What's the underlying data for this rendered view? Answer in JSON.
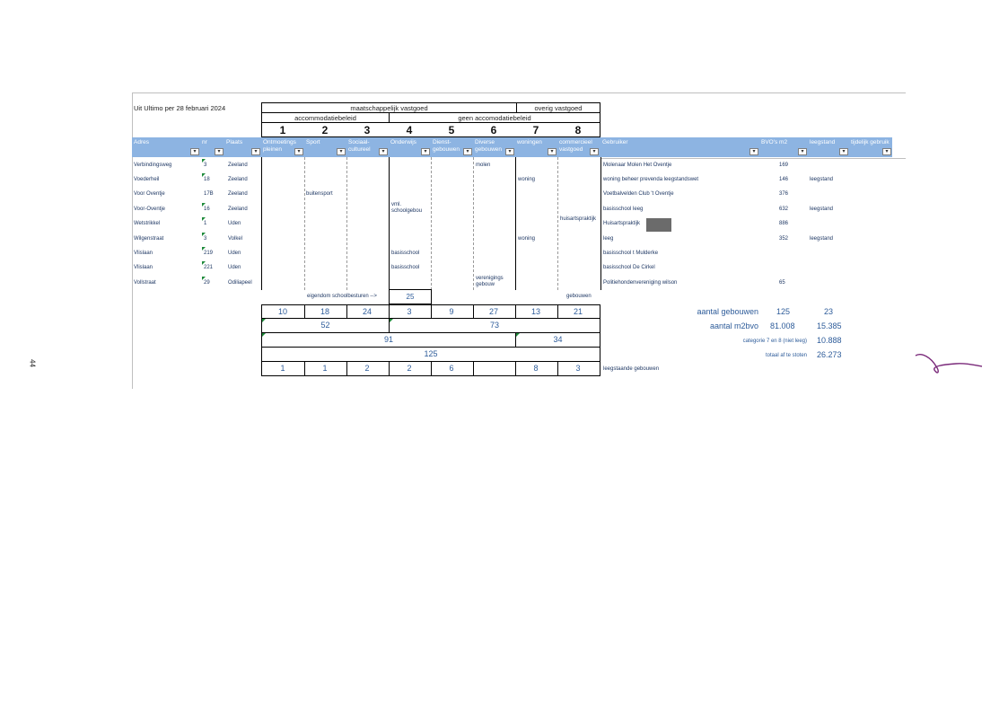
{
  "page_number": "44",
  "title": "Uit Ultimo per 28 februari 2024",
  "groups": {
    "maatschappelijk": "maatschappelijk vastgoed",
    "overig": "overig vastgoed",
    "accommodatie": "accommodatiebeleid",
    "geen": "geen accomodatiebeleid"
  },
  "category_numbers": [
    "1",
    "2",
    "3",
    "4",
    "5",
    "6",
    "7",
    "8"
  ],
  "headers": {
    "adres": "Adres",
    "nr": "nr",
    "plaats": "Plaats",
    "c1": "Ontmoetings pleinen",
    "c2": "Sport",
    "c3": "Sociaal-cultureel",
    "c4": "Onderwijs",
    "c5": "Dienst-gebouwen",
    "c6": "Diverse gebouwen",
    "c7": "woningen",
    "c8": "commercieel vastgoed",
    "gebruiker": "Gebruiker",
    "bvo": "BVO's m2",
    "leegstand": "leegstand",
    "tijdelijk": "tijdelijk gebruik"
  },
  "rows": [
    {
      "adres": "Verbindingsweg",
      "nr": "3",
      "plaats": "Zeeland",
      "c2": "",
      "c4": "",
      "c6": "molen",
      "c7": "",
      "c8": "",
      "gebruiker": "Molenaar Molen Het Oventje",
      "bvo": "169",
      "leeg": ""
    },
    {
      "adres": "Voederheil",
      "nr": "18",
      "plaats": "Zeeland",
      "c2": "",
      "c4": "",
      "c6": "",
      "c7": "woning",
      "c8": "",
      "gebruiker": "woning beheer prevenda leegstandswet",
      "bvo": "146",
      "leeg": "leegstand"
    },
    {
      "adres": "Voor Oventje",
      "nr": "17B",
      "plaats": "Zeeland",
      "c2": "buitensport",
      "c4": "",
      "c6": "",
      "c7": "",
      "c8": "",
      "gebruiker": "Voetbalvelden Club 't Oventje",
      "bvo": "376",
      "leeg": ""
    },
    {
      "adres": "Voor-Oventje",
      "nr": "16",
      "plaats": "Zeeland",
      "c2": "",
      "c4": "vml. schoolgebou",
      "c6": "",
      "c7": "",
      "c8": "",
      "gebruiker": "basisschool leeg",
      "bvo": "632",
      "leeg": "leegstand"
    },
    {
      "adres": "Wetstrikkel",
      "nr": "1",
      "plaats": "Uden",
      "c2": "",
      "c4": "",
      "c6": "",
      "c7": "",
      "c8": "huisartspraktijk",
      "gebruiker": "Huisartspraktijk",
      "bvo": "886",
      "leeg": ""
    },
    {
      "adres": "Wilgenstraat",
      "nr": "3",
      "plaats": "Volkel",
      "c2": "",
      "c4": "",
      "c6": "",
      "c7": "woning",
      "c8": "",
      "gebruiker": "leeg",
      "bvo": "352",
      "leeg": "leegstand"
    },
    {
      "adres": "Vlislaan",
      "nr": "219",
      "plaats": "Uden",
      "c2": "",
      "c4": "basisschool",
      "c6": "",
      "c7": "",
      "c8": "",
      "gebruiker": "basisschool t Mulderke",
      "bvo": "",
      "leeg": ""
    },
    {
      "adres": "Vlislaan",
      "nr": "221",
      "plaats": "Uden",
      "c2": "",
      "c4": "basisschool",
      "c6": "",
      "c7": "",
      "c8": "",
      "gebruiker": "basisschool De Cirkel",
      "bvo": "",
      "leeg": ""
    },
    {
      "adres": "Vollstraat",
      "nr": "29",
      "plaats": "Odiliapeel",
      "c2": "",
      "c4": "",
      "c6": "verenigings gebouw",
      "c7": "",
      "c8": "",
      "gebruiker": "Politiehondenvereniging wilson",
      "bvo": "65",
      "leeg": ""
    }
  ],
  "eigendom_label": "eigendom schoolbesturen -->",
  "eigendom_value": "25",
  "gebouwen_label": "gebouwen",
  "counts": [
    "10",
    "18",
    "24",
    "3",
    "9",
    "27",
    "13",
    "21"
  ],
  "subtotal_52": "52",
  "subtotal_73": "73",
  "subtotal_91": "91",
  "subtotal_34": "34",
  "total_125": "125",
  "leeg_counts": [
    "1",
    "1",
    "2",
    "2",
    "6",
    "",
    "8",
    "3"
  ],
  "leeg_label": "leegstaande gebouwen",
  "summary": {
    "aantal_gebouwen": "aantal gebouwen",
    "aantal_gebouwen_a": "125",
    "aantal_gebouwen_b": "23",
    "aantal_m2bvo": "aantal m2bvo",
    "m2bvo_a": "81.008",
    "m2bvo_b": "15.385",
    "categorie": "categorie 7 en 8 (niet leeg)",
    "categorie_val": "10.888",
    "totaal": "totaal af te stoten",
    "totaal_val": "26.273"
  }
}
